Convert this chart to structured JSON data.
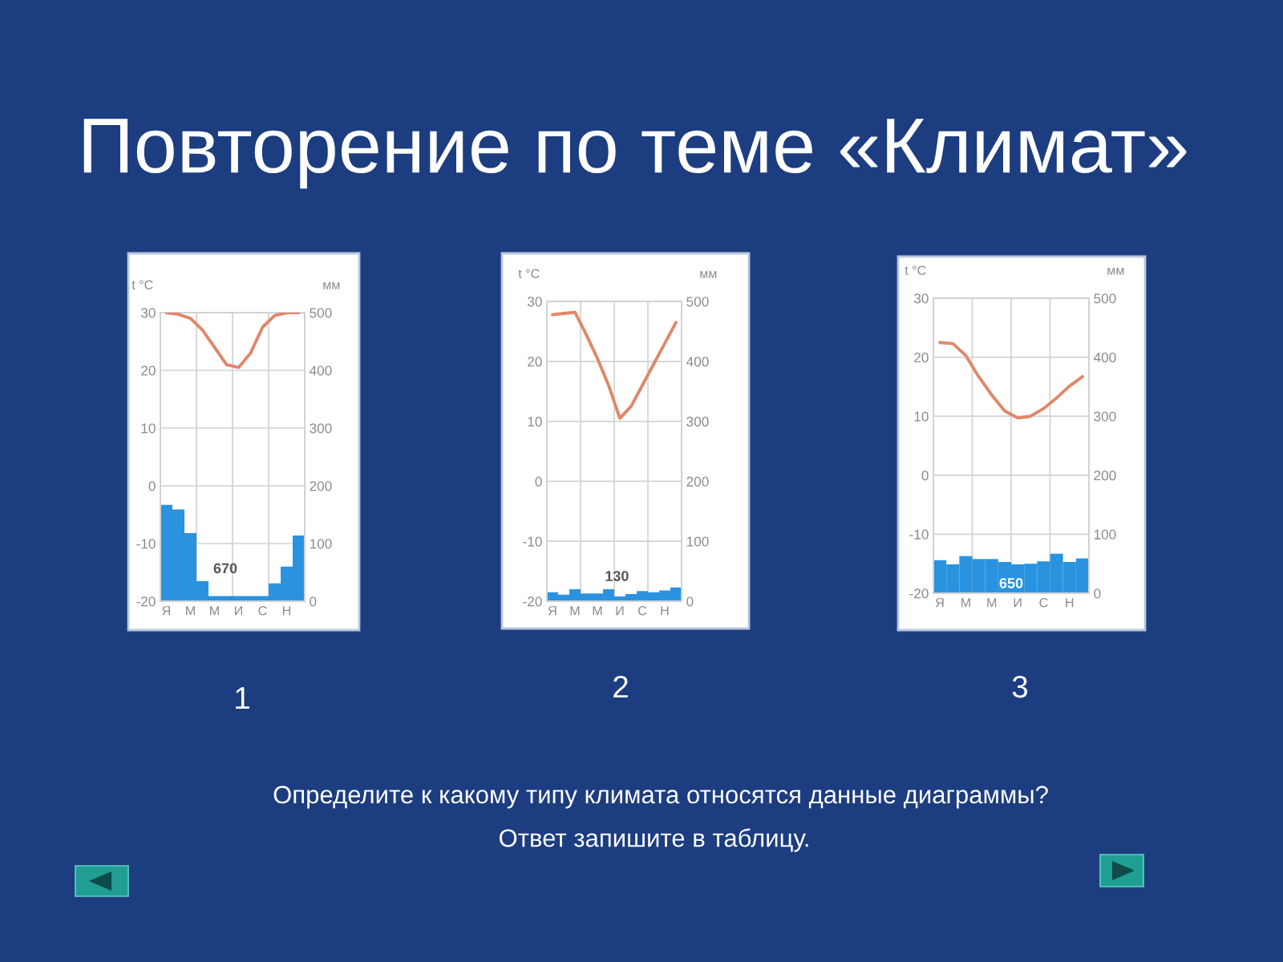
{
  "chart_data": [
    {
      "type": "other",
      "title": "Повторение по теме «Климат»",
      "annotations": [
        "Определите к какому типу климата относятся данные диаграммы?",
        "Ответ запишите в таблицу."
      ]
    },
    {
      "type": "bar",
      "title": "1",
      "ylabel": "t °C",
      "y2label": "мм",
      "categories": [
        "Я",
        null,
        "М",
        null,
        "М",
        null,
        "И",
        null,
        "С",
        null,
        "Н",
        null
      ],
      "series": [
        {
          "type": "bar",
          "axis": "y2",
          "color": "#2993e0",
          "values": [
            167,
            159,
            118,
            35,
            9,
            9,
            9,
            9,
            9,
            31,
            60,
            114
          ]
        },
        {
          "type": "line",
          "color": "#e0876a",
          "values": [
            30,
            29.7,
            29,
            27,
            24,
            21,
            20.5,
            23,
            27.5,
            29.5,
            30,
            30
          ]
        }
      ],
      "ylim": [
        -20,
        30
      ],
      "yticks": [
        -20,
        -10,
        0,
        10,
        20,
        30
      ],
      "y2lim": [
        0,
        500
      ],
      "y2ticks": [
        0,
        100,
        200,
        300,
        400,
        500
      ],
      "grid": true,
      "annotations": [
        "670"
      ]
    },
    {
      "type": "bar",
      "title": "2",
      "ylabel": "t °C",
      "y2label": "мм",
      "categories": [
        "Я",
        null,
        "М",
        null,
        "М",
        null,
        "И",
        null,
        "С",
        null,
        "Н",
        null
      ],
      "series": [
        {
          "type": "bar",
          "axis": "y2",
          "color": "#2993e0",
          "values": [
            15,
            11,
            20,
            13,
            13,
            20,
            8,
            12,
            17,
            15,
            18,
            23
          ]
        },
        {
          "type": "line",
          "color": "#e0876a",
          "values": [
            27.8,
            28,
            28.2,
            24.5,
            20.5,
            16,
            10.5,
            12.5,
            16,
            19.5,
            23,
            26.5
          ]
        }
      ],
      "ylim": [
        -20,
        30
      ],
      "yticks": [
        -20,
        -10,
        0,
        10,
        20,
        30
      ],
      "y2lim": [
        0,
        500
      ],
      "y2ticks": [
        0,
        100,
        200,
        300,
        400,
        500
      ],
      "grid": true,
      "annotations": [
        "130"
      ]
    },
    {
      "type": "bar",
      "title": "3",
      "ylabel": "t °C",
      "y2label": "мм",
      "categories": [
        "Я",
        null,
        "М",
        null,
        "М",
        null,
        "И",
        null,
        "С",
        null,
        "Н",
        null
      ],
      "series": [
        {
          "type": "bar",
          "axis": "y2",
          "color": "#2993e0",
          "values": [
            56,
            49,
            63,
            58,
            58,
            53,
            49,
            50,
            54,
            67,
            53,
            59
          ]
        },
        {
          "type": "line",
          "color": "#e0876a",
          "values": [
            22.5,
            22.3,
            20.3,
            16.7,
            13.6,
            10.9,
            9.7,
            10,
            11.3,
            13.1,
            15.1,
            16.7
          ]
        }
      ],
      "ylim": [
        -20,
        30
      ],
      "yticks": [
        -20,
        -10,
        0,
        10,
        20,
        30
      ],
      "y2lim": [
        0,
        500
      ],
      "y2ticks": [
        0,
        100,
        200,
        300,
        400,
        500
      ],
      "grid": true,
      "annotations": [
        "650"
      ]
    }
  ]
}
